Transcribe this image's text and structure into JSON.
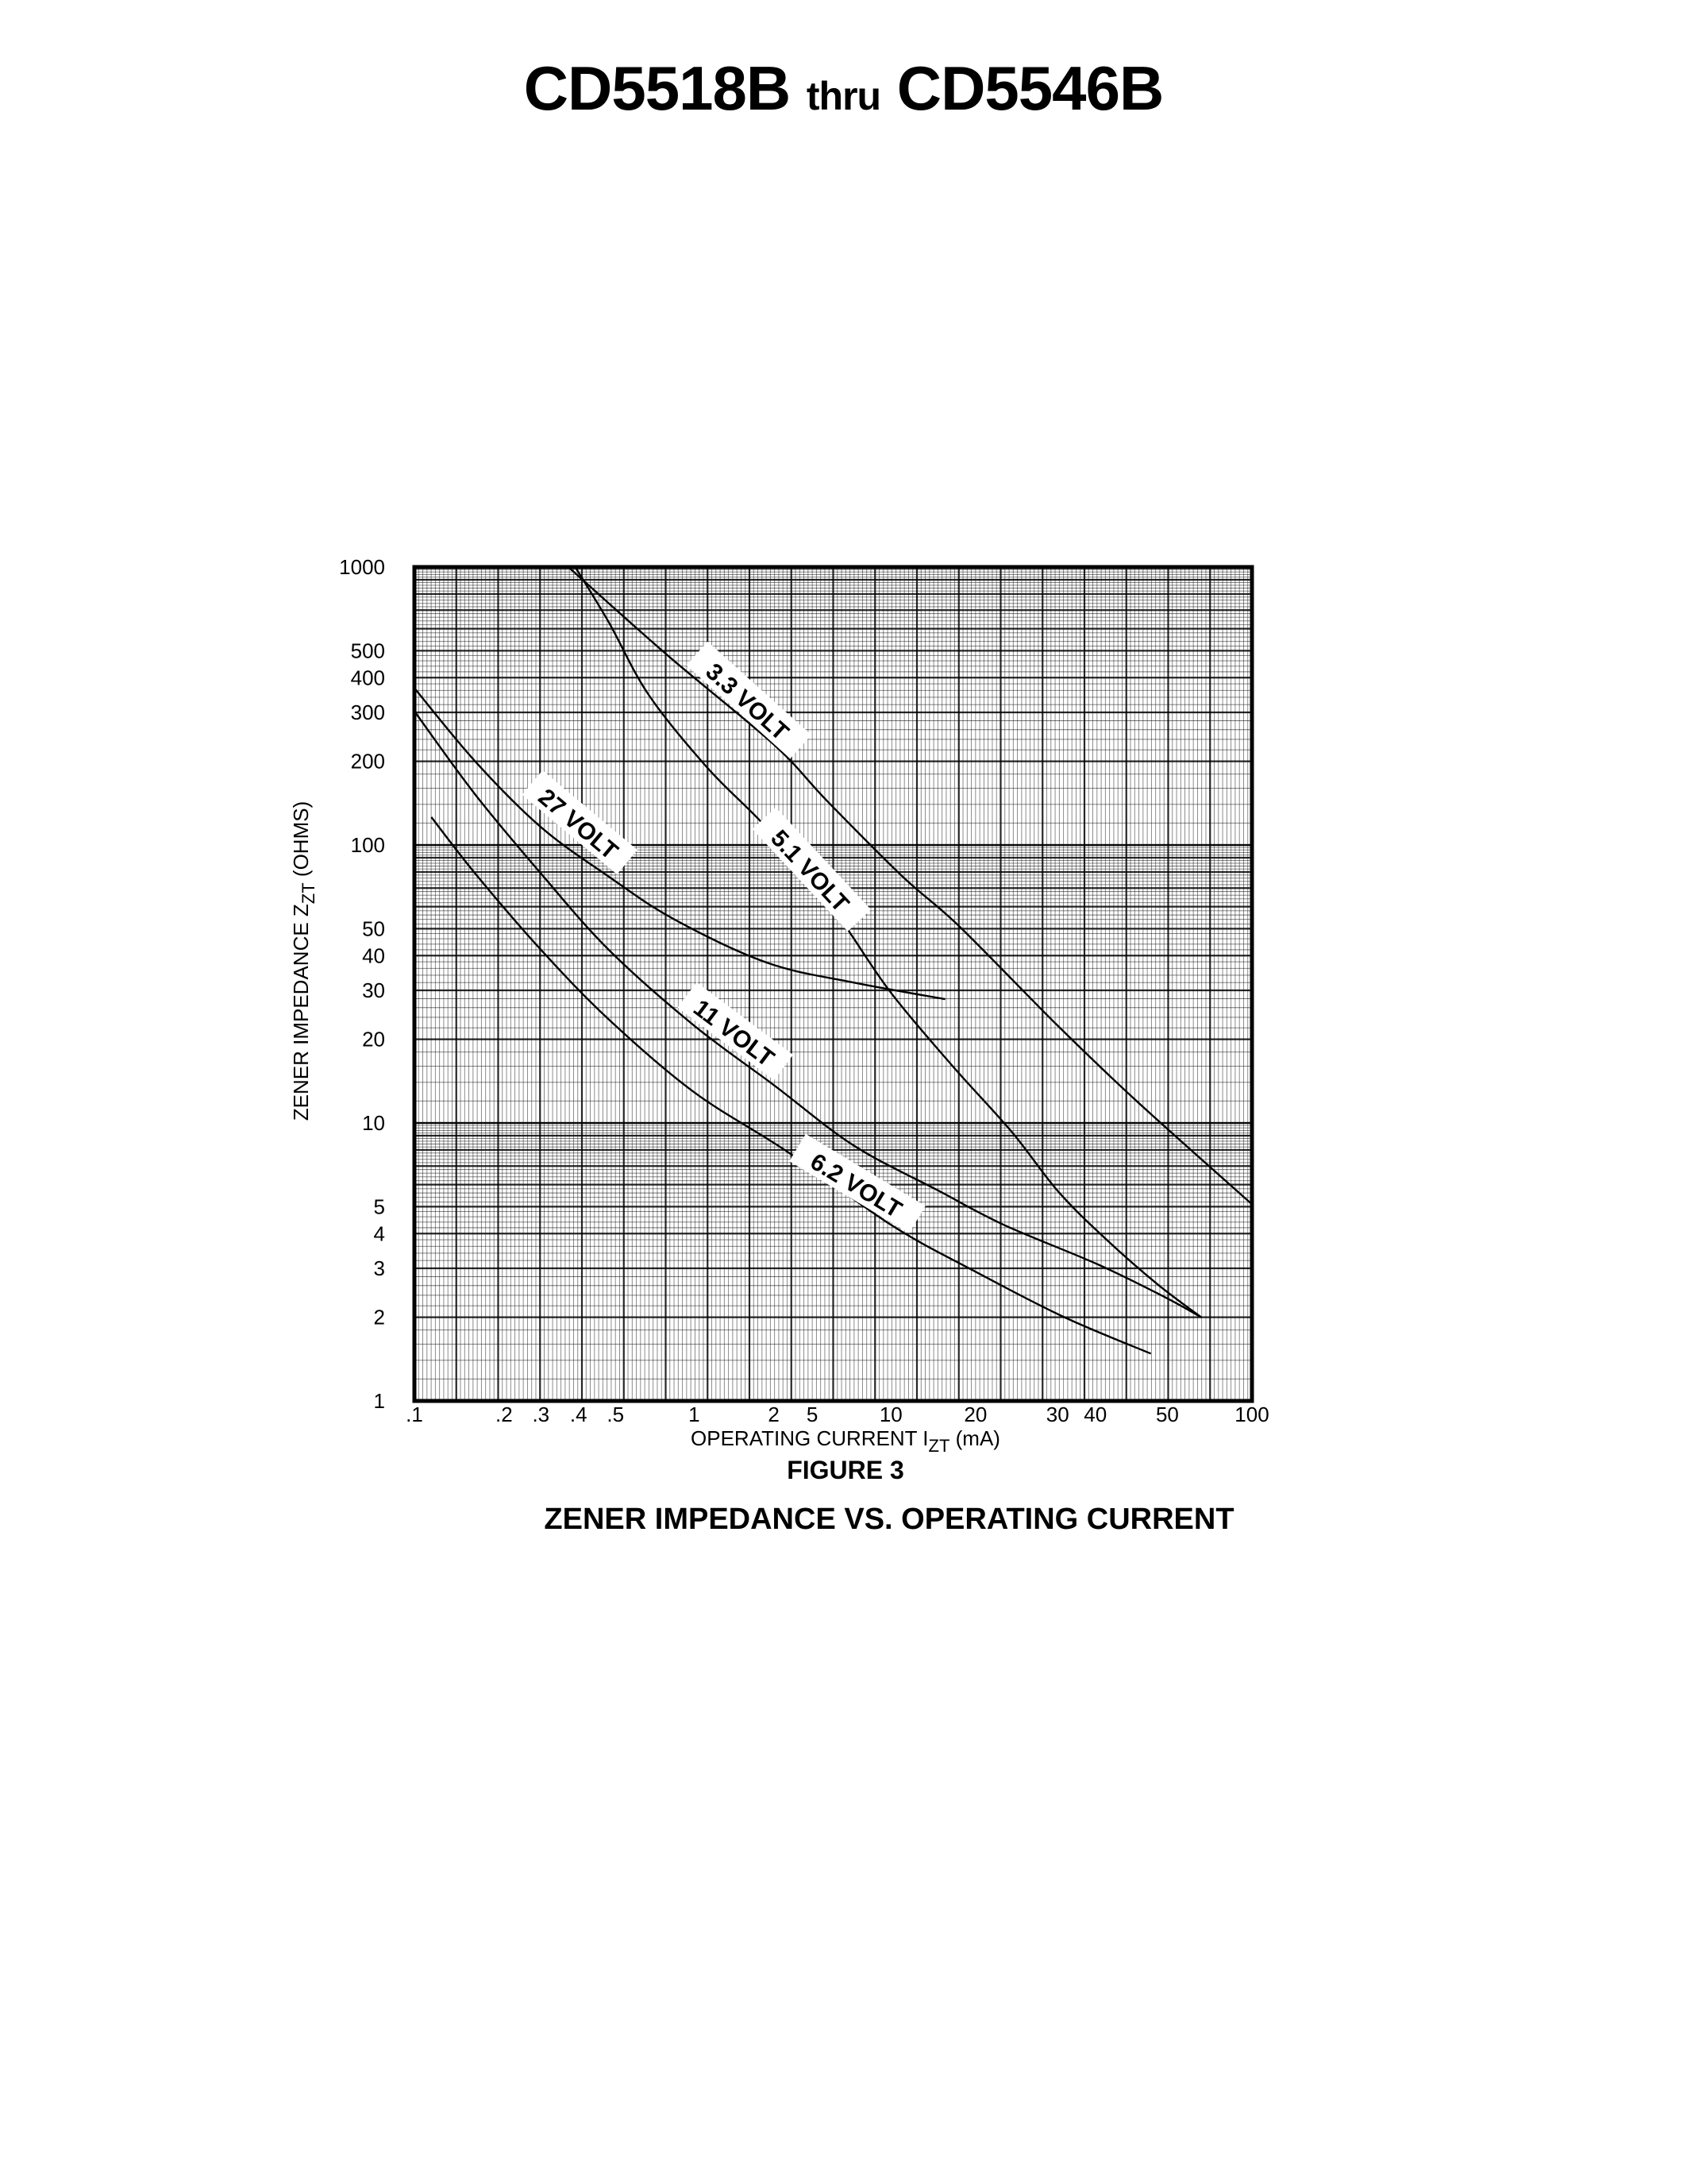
{
  "header": {
    "part_from": "CD5518B",
    "thru": "thru",
    "part_to": "CD5546B"
  },
  "chart_data": {
    "type": "line",
    "figure_label": "FIGURE 3",
    "title": "ZENER IMPEDANCE VS. OPERATING CURRENT",
    "xlabel": "OPERATING CURRENT I",
    "xlabel_sub": "ZT",
    "xlabel_unit": " (mA)",
    "ylabel": "ZENER IMPEDANCE Z",
    "ylabel_sub": "ZT",
    "ylabel_unit": " (OHMS)",
    "x_scale": "log",
    "y_scale": "log",
    "xlim": [
      0.1,
      100
    ],
    "ylim": [
      1,
      1000
    ],
    "grid": true,
    "x_ticks": [
      {
        "label": ".1",
        "value": 0.1
      },
      {
        "label": ".2",
        "value": 0.2
      },
      {
        "label": ".3",
        "value": 0.3
      },
      {
        "label": ".4",
        "value": 0.4
      },
      {
        "label": ".5",
        "value": 0.5
      },
      {
        "label": "1",
        "value": 1
      },
      {
        "label": "2",
        "value": 2
      },
      {
        "label": "5",
        "value": 5
      },
      {
        "label": "10",
        "value": 10
      },
      {
        "label": "20",
        "value": 20
      },
      {
        "label": "30",
        "value": 30
      },
      {
        "label": "40",
        "value": 40
      },
      {
        "label": "50",
        "value": 50
      },
      {
        "label": "100",
        "value": 100
      }
    ],
    "y_ticks": [
      {
        "label": "1000",
        "value": 1000
      },
      {
        "label": "500",
        "value": 500
      },
      {
        "label": "400",
        "value": 400
      },
      {
        "label": "300",
        "value": 300
      },
      {
        "label": "200",
        "value": 200
      },
      {
        "label": "100",
        "value": 100
      },
      {
        "label": "50",
        "value": 50
      },
      {
        "label": "40",
        "value": 40
      },
      {
        "label": "30",
        "value": 30
      },
      {
        "label": "20",
        "value": 20
      },
      {
        "label": "10",
        "value": 10
      },
      {
        "label": "5",
        "value": 5
      },
      {
        "label": "4",
        "value": 4
      },
      {
        "label": "3",
        "value": 3
      },
      {
        "label": "2",
        "value": 2
      },
      {
        "label": "1",
        "value": 1
      }
    ],
    "series": [
      {
        "name": "3.3 VOLT",
        "x": [
          0.37,
          0.79,
          2,
          5.7,
          11,
          17.5,
          30,
          45.6,
          100
        ],
        "y": [
          1000,
          482,
          230,
          144,
          77,
          51,
          22.4,
          11.9,
          5.1
        ]
      },
      {
        "name": "5.1 VOLT",
        "x": [
          0.39,
          0.48,
          0.67,
          1.12,
          1.78,
          4.4,
          6.7,
          10,
          16.5,
          23.9,
          30,
          41,
          48.4,
          66
        ],
        "y": [
          1000,
          634,
          347,
          190,
          122,
          79,
          51,
          29.4,
          16.1,
          9.3,
          5.7,
          3.9,
          2.64,
          2.0
        ]
      },
      {
        "name": "27 VOLT",
        "x": [
          0.1,
          0.16,
          0.3,
          0.48,
          0.84,
          1.89,
          7.2,
          15.6
        ],
        "y": [
          367,
          200,
          116,
          77,
          54,
          37.7,
          32,
          27.9
        ]
      },
      {
        "name": "11 VOLT",
        "x": [
          0.1,
          0.16,
          0.3,
          0.48,
          1,
          2,
          7.2,
          14.8,
          23,
          40.3,
          49.5,
          66
        ],
        "y": [
          303,
          152,
          79,
          42,
          22.4,
          13.7,
          8.3,
          5.7,
          4.3,
          3.1,
          2.37,
          2.0
        ]
      },
      {
        "name": "6.2 VOLT",
        "x": [
          0.114,
          0.16,
          0.3,
          0.48,
          1,
          2.74,
          10,
          19.7,
          31.6,
          47.5
        ],
        "y": [
          126,
          79,
          42,
          23.6,
          12.9,
          7.9,
          4.3,
          2.94,
          2.0,
          1.48
        ]
      }
    ]
  }
}
